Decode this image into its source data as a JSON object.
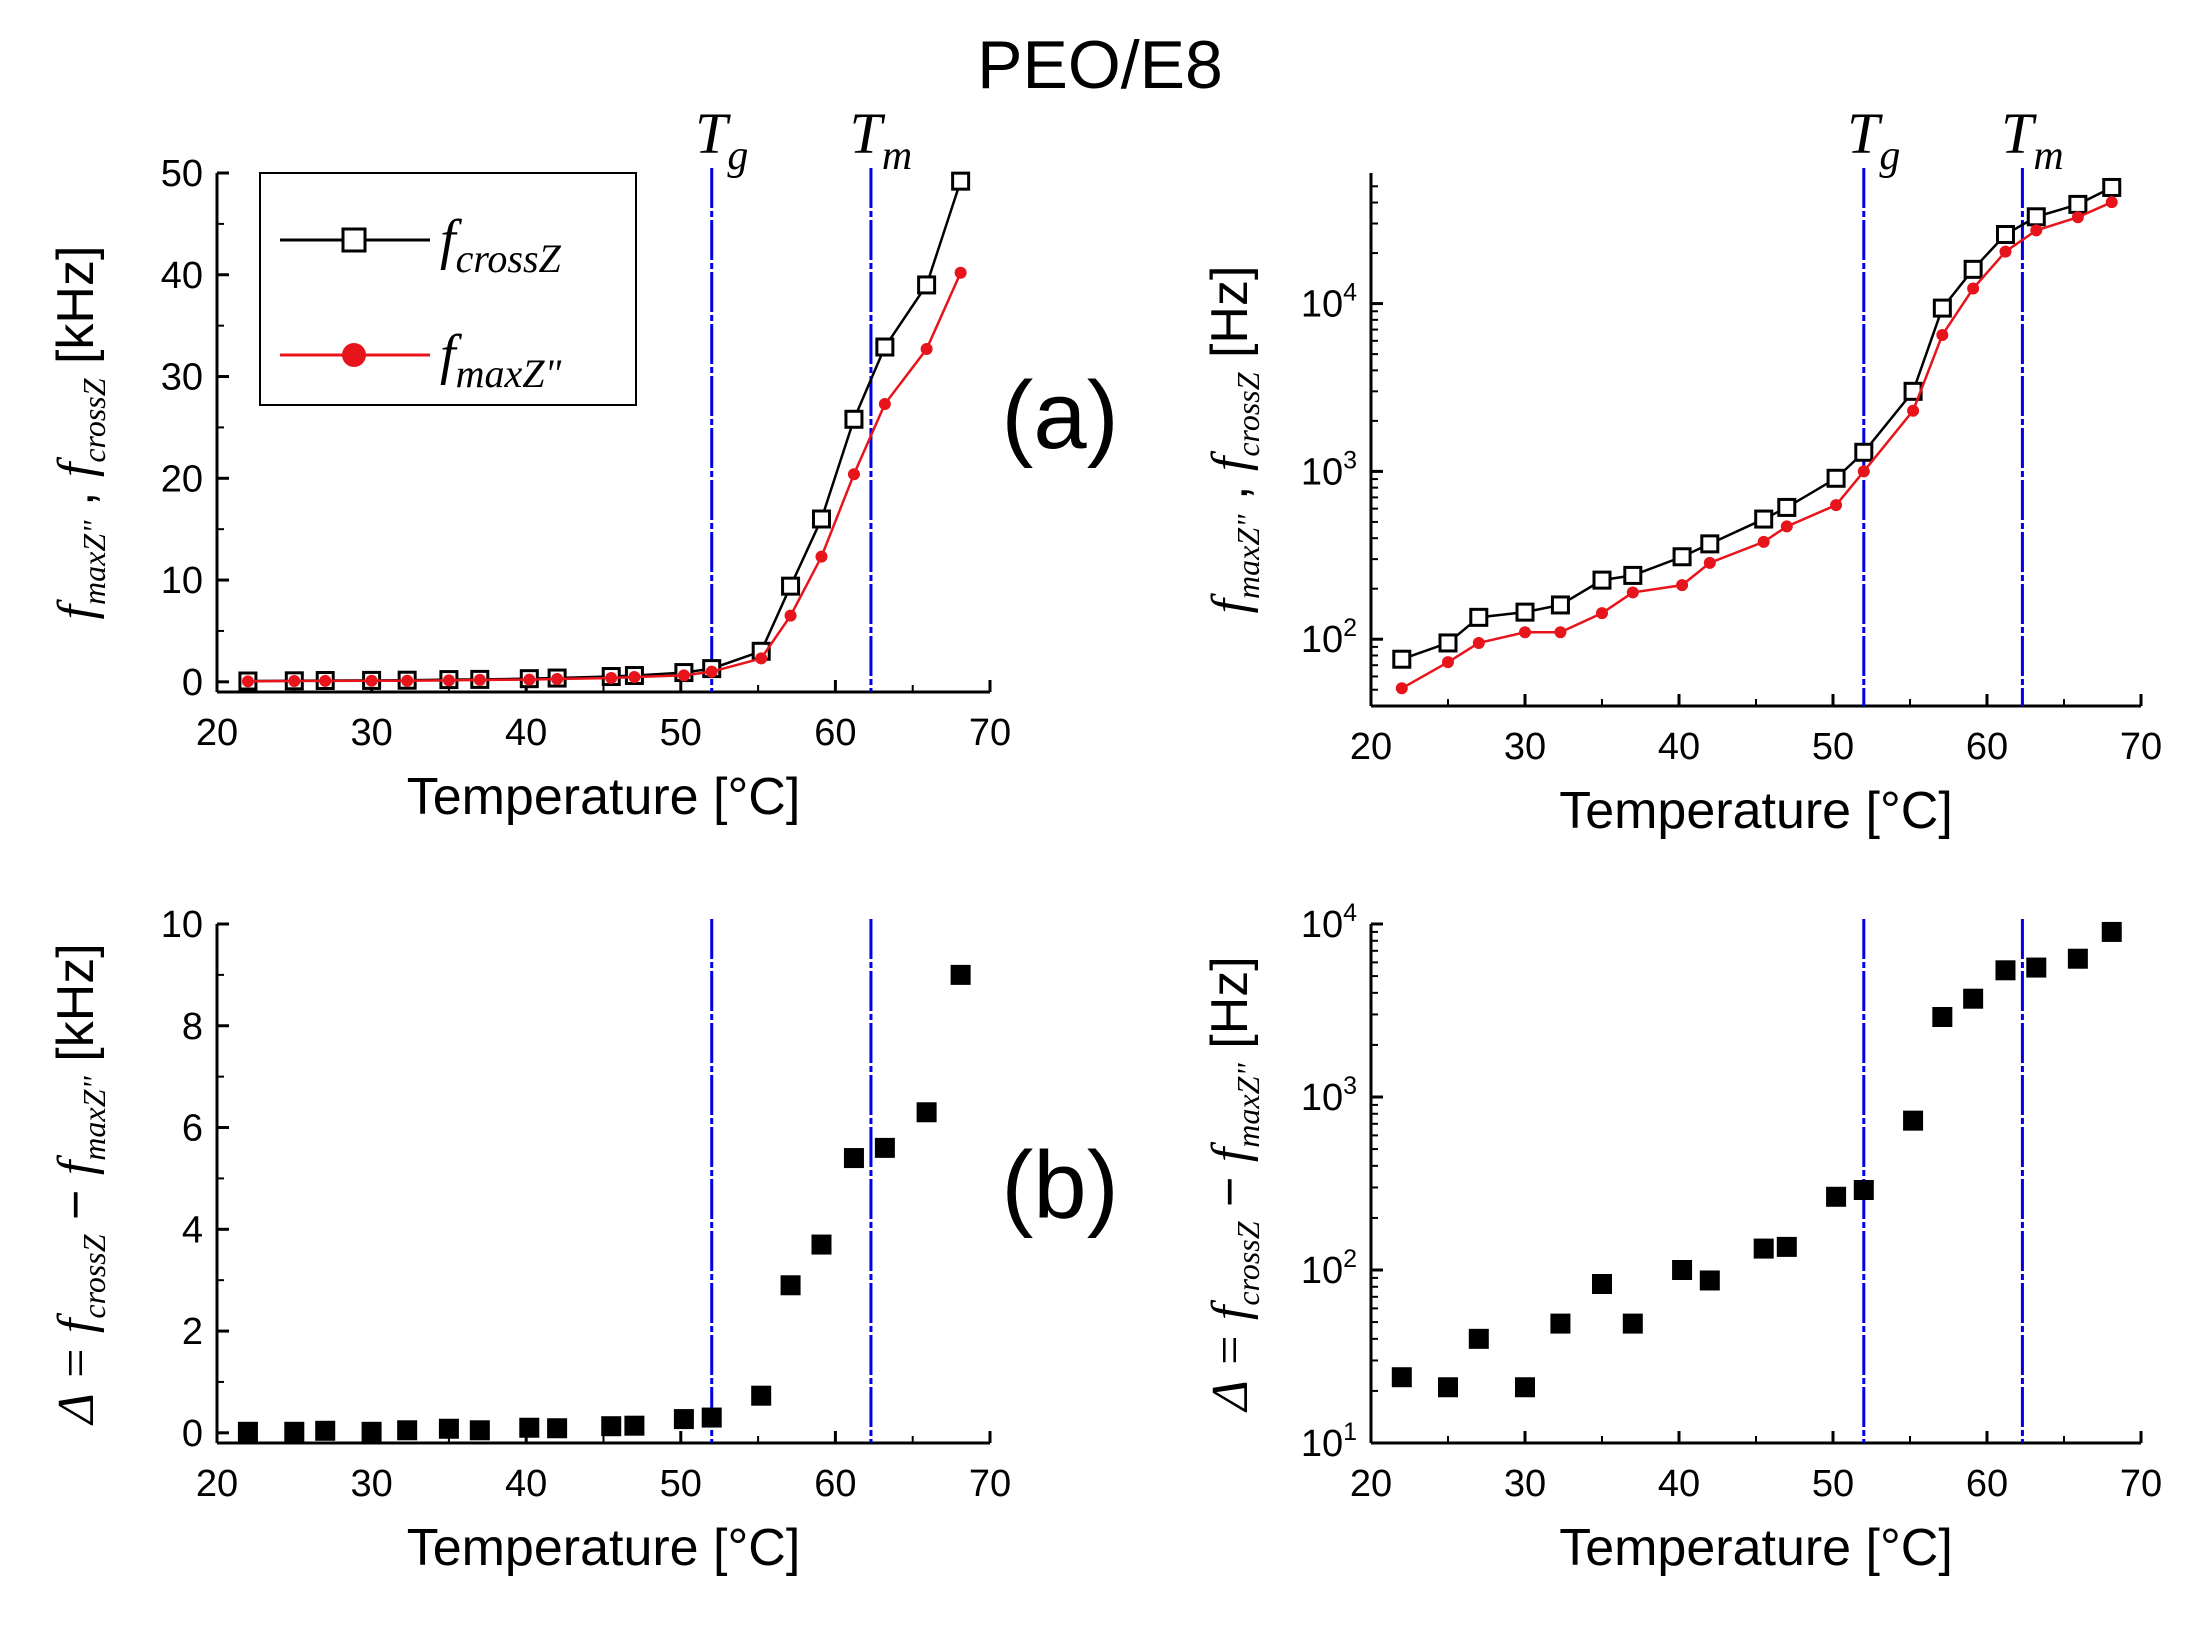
{
  "figure_title": "PEO/E8",
  "chart_data": [
    {
      "id": "a_linear",
      "type": "line",
      "panel_label": "(a)",
      "xlabel": "Temperature [°C]",
      "ylabel_unit": "[kHz]",
      "ylabel_terms": [
        "f",
        "maxZ\"",
        "f",
        "crossZ"
      ],
      "xlim": [
        20,
        70
      ],
      "ylim": [
        -1,
        50
      ],
      "xticks": [
        20,
        30,
        40,
        50,
        60,
        70
      ],
      "yticks": [
        0,
        10,
        20,
        30,
        40,
        50
      ],
      "yscale": "linear",
      "vlines": [
        {
          "x": 52,
          "label": "T",
          "sub": "g"
        },
        {
          "x": 62.3,
          "label": "T",
          "sub": "m"
        }
      ],
      "legend": {
        "position": "top-left",
        "entries": [
          {
            "base": "f",
            "sub": "crossZ"
          },
          {
            "base": "f",
            "sub": "maxZ\""
          }
        ]
      },
      "x": [
        22,
        25,
        27,
        30,
        32.3,
        35,
        37,
        40.2,
        42,
        45.5,
        47,
        50.2,
        52,
        55.2,
        57.1,
        59.1,
        61.2,
        63.2,
        65.9,
        68.1
      ],
      "series": [
        {
          "name": "f crossZ",
          "marker": "open-square",
          "color": "#000000",
          "values": [
            0.08,
            0.1,
            0.13,
            0.14,
            0.16,
            0.22,
            0.24,
            0.31,
            0.37,
            0.52,
            0.62,
            0.91,
            1.3,
            3.0,
            9.4,
            16.0,
            25.8,
            32.9,
            39.0,
            49.2
          ]
        },
        {
          "name": "f maxZ\"",
          "marker": "filled-circle",
          "color": "#e8141c",
          "values": [
            0.05,
            0.08,
            0.09,
            0.11,
            0.11,
            0.14,
            0.19,
            0.21,
            0.28,
            0.38,
            0.47,
            0.63,
            1.0,
            2.3,
            6.5,
            12.3,
            20.4,
            27.3,
            32.7,
            40.2
          ]
        }
      ]
    },
    {
      "id": "a_log",
      "type": "line",
      "xlabel": "Temperature [°C]",
      "ylabel_unit": "[Hz]",
      "ylabel_terms": [
        "f",
        "maxZ\"",
        "f",
        "crossZ"
      ],
      "xlim": [
        20,
        70
      ],
      "ylim": [
        40,
        60000
      ],
      "xticks": [
        20,
        30,
        40,
        50,
        60,
        70
      ],
      "yticks": [
        100,
        1000,
        10000
      ],
      "yscale": "log",
      "vlines": [
        {
          "x": 52,
          "label": "T",
          "sub": "g"
        },
        {
          "x": 62.3,
          "label": "T",
          "sub": "m"
        }
      ],
      "x": [
        22,
        25,
        27,
        30,
        32.3,
        35,
        37,
        40.2,
        42,
        45.5,
        47,
        50.2,
        52,
        55.2,
        57.1,
        59.1,
        61.2,
        63.2,
        65.9,
        68.1
      ],
      "series": [
        {
          "name": "f crossZ",
          "marker": "open-square",
          "color": "#000000",
          "values": [
            76,
            95,
            135,
            145,
            160,
            225,
            240,
            310,
            370,
            520,
            610,
            910,
            1300,
            3000,
            9400,
            16000,
            25800,
            32900,
            39000,
            49200
          ]
        },
        {
          "name": "f maxZ\"",
          "marker": "filled-circle",
          "color": "#e8141c",
          "values": [
            51,
            73,
            95,
            110,
            110,
            143,
            190,
            210,
            285,
            380,
            470,
            630,
            1000,
            2300,
            6500,
            12300,
            20400,
            27300,
            32700,
            40200
          ]
        }
      ]
    },
    {
      "id": "b_linear",
      "type": "scatter",
      "panel_label": "(b)",
      "xlabel": "Temperature [°C]",
      "ylabel_unit": "[kHz]",
      "ylabel_terms": [
        "Δ = f",
        "crossZ",
        "f",
        "maxZ\""
      ],
      "xlim": [
        20,
        70
      ],
      "ylim": [
        -0.2,
        10
      ],
      "xticks": [
        20,
        30,
        40,
        50,
        60,
        70
      ],
      "yticks": [
        0,
        2,
        4,
        6,
        8,
        10
      ],
      "yscale": "linear",
      "vlines": [
        {
          "x": 52
        },
        {
          "x": 62.3
        }
      ],
      "x": [
        22,
        25,
        27,
        30,
        32.3,
        35,
        37,
        40.2,
        42,
        45.5,
        47,
        50.2,
        52,
        55.2,
        57.1,
        59.1,
        61.2,
        63.2,
        65.9,
        68.1
      ],
      "series": [
        {
          "name": "Δ",
          "marker": "filled-square",
          "color": "#000000",
          "values": [
            0.02,
            0.02,
            0.04,
            0.02,
            0.05,
            0.08,
            0.05,
            0.1,
            0.09,
            0.13,
            0.14,
            0.27,
            0.3,
            0.73,
            2.9,
            3.7,
            5.4,
            5.6,
            6.3,
            9.0
          ]
        }
      ]
    },
    {
      "id": "b_log",
      "type": "scatter",
      "xlabel": "Temperature [°C]",
      "ylabel_unit": "[Hz]",
      "ylabel_terms": [
        "Δ = f",
        "crossZ",
        "f",
        "maxZ\""
      ],
      "xlim": [
        20,
        70
      ],
      "ylim": [
        10,
        10000
      ],
      "xticks": [
        20,
        30,
        40,
        50,
        60,
        70
      ],
      "yticks": [
        10,
        100,
        1000,
        10000
      ],
      "yscale": "log",
      "vlines": [
        {
          "x": 52
        },
        {
          "x": 62.3
        }
      ],
      "x": [
        22,
        25,
        27,
        30,
        32.3,
        35,
        37,
        40.2,
        42,
        45.5,
        47,
        50.2,
        52,
        55.2,
        57.1,
        59.1,
        61.2,
        63.2,
        65.9,
        68.1
      ],
      "series": [
        {
          "name": "Δ",
          "marker": "filled-square",
          "color": "#000000",
          "values": [
            24,
            21,
            40,
            21,
            49,
            83,
            49,
            100,
            87,
            133,
            136,
            265,
            290,
            730,
            2900,
            3700,
            5400,
            5600,
            6300,
            9000
          ]
        }
      ]
    }
  ]
}
